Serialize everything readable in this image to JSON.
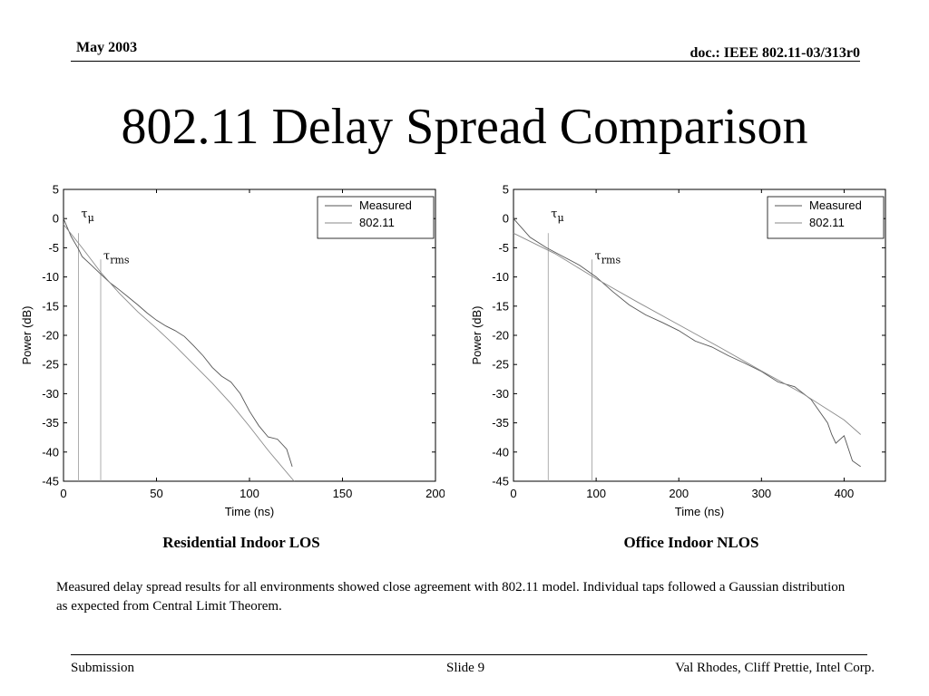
{
  "header": {
    "date": "May 2003",
    "doc": "doc.: IEEE 802.11-03/313r0"
  },
  "title": "802.11 Delay Spread Comparison",
  "captions": {
    "left": "Residential Indoor LOS",
    "right": "Office Indoor NLOS"
  },
  "note": "Measured delay spread results for all environments showed close agreement with 802.11 model.  Individual taps followed a Gaussian distribution as expected from Central Limit Theorem.",
  "footer": {
    "left": "Submission",
    "center": "Slide 9",
    "right": "Val Rhodes, Cliff Prettie, Intel Corp."
  },
  "colors": {
    "measured": "#555555",
    "model": "#8a8a8a",
    "marker": "#9a9a9a"
  },
  "chart_data": [
    {
      "type": "line",
      "xlabel": "Time (ns)",
      "ylabel": "Power (dB)",
      "xlim": [
        0,
        200
      ],
      "ylim": [
        -45,
        5
      ],
      "xticks": [
        0,
        50,
        100,
        150,
        200
      ],
      "yticks": [
        5,
        0,
        -5,
        -10,
        -15,
        -20,
        -25,
        -30,
        -35,
        -40,
        -45
      ],
      "grid": false,
      "legend": "top-right",
      "series": [
        {
          "name": "Measured",
          "x": [
            0,
            4,
            8,
            10,
            15,
            20,
            25,
            30,
            35,
            40,
            45,
            50,
            55,
            60,
            65,
            70,
            75,
            80,
            85,
            90,
            95,
            100,
            105,
            110,
            115,
            120,
            123
          ],
          "y": [
            0,
            -3,
            -5.2,
            -6.5,
            -8,
            -9.5,
            -11,
            -12.2,
            -13.5,
            -14.8,
            -16.2,
            -17.4,
            -18.4,
            -19.2,
            -20.2,
            -21.8,
            -23.5,
            -25.5,
            -27,
            -28,
            -30,
            -33,
            -35.5,
            -37.4,
            -37.8,
            -39.5,
            -42.5
          ]
        },
        {
          "name": "802.11",
          "x": [
            0,
            10,
            20,
            30,
            40,
            50,
            60,
            70,
            80,
            90,
            100,
            110,
            124
          ],
          "y": [
            -1,
            -5,
            -9.2,
            -12.8,
            -16,
            -18.8,
            -21.8,
            -25,
            -28.2,
            -31.7,
            -35.6,
            -39.7,
            -45
          ]
        }
      ],
      "markers": [
        {
          "label": "τ",
          "sub": "μ",
          "x": 8
        },
        {
          "label": "τ",
          "sub": "rms",
          "x": 20
        }
      ]
    },
    {
      "type": "line",
      "xlabel": "Time (ns)",
      "ylabel": "Power (dB)",
      "xlim": [
        0,
        450
      ],
      "ylim": [
        -45,
        5
      ],
      "xticks": [
        0,
        100,
        200,
        300,
        400
      ],
      "yticks": [
        5,
        0,
        -5,
        -10,
        -15,
        -20,
        -25,
        -30,
        -35,
        -40,
        -45
      ],
      "grid": false,
      "legend": "top-right",
      "series": [
        {
          "name": "Measured",
          "x": [
            0,
            20,
            40,
            60,
            80,
            100,
            120,
            140,
            160,
            180,
            200,
            220,
            240,
            260,
            280,
            300,
            320,
            340,
            360,
            380,
            385,
            390,
            400,
            410,
            420
          ],
          "y": [
            0,
            -3.2,
            -5,
            -6.5,
            -8,
            -10,
            -12.5,
            -14.8,
            -16.5,
            -17.8,
            -19.2,
            -21,
            -22,
            -23.5,
            -24.8,
            -26.2,
            -28,
            -28.8,
            -31,
            -35,
            -37,
            -38.5,
            -37.2,
            -41.5,
            -42.5
          ]
        },
        {
          "name": "802.11",
          "x": [
            0,
            50,
            100,
            150,
            200,
            250,
            300,
            350,
            400,
            420
          ],
          "y": [
            -2.5,
            -6,
            -10.3,
            -14.3,
            -18.2,
            -22.1,
            -26.1,
            -30,
            -34.5,
            -37
          ]
        }
      ],
      "markers": [
        {
          "label": "τ",
          "sub": "μ",
          "x": 42
        },
        {
          "label": "τ",
          "sub": "rms",
          "x": 95
        }
      ]
    }
  ]
}
